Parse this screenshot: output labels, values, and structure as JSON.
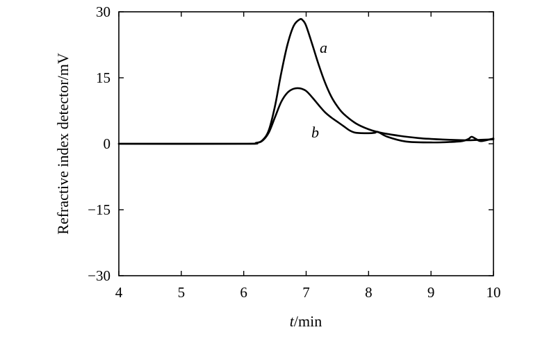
{
  "chart_data": {
    "type": "line",
    "xlabel": "t/min",
    "xlabel_var": "t",
    "xlabel_unit": "/min",
    "ylabel": "Refractive index detector/mV",
    "xlim": [
      4,
      10
    ],
    "ylim": [
      -30,
      30
    ],
    "xticks": [
      4,
      5,
      6,
      7,
      8,
      9,
      10
    ],
    "yticks": [
      30,
      15,
      0,
      -15,
      -30
    ],
    "xtick_labels": [
      "4",
      "5",
      "6",
      "7",
      "8",
      "9",
      "10"
    ],
    "ytick_labels": [
      "30",
      "15",
      "0",
      "−15",
      "−30"
    ],
    "grid": false,
    "series": [
      {
        "name": "a",
        "x": [
          4.0,
          6.0,
          6.2,
          6.3,
          6.4,
          6.5,
          6.6,
          6.7,
          6.8,
          6.9,
          6.95,
          7.0,
          7.1,
          7.2,
          7.3,
          7.4,
          7.5,
          7.6,
          7.8,
          8.0,
          8.2,
          8.5,
          8.8,
          9.0,
          9.3,
          9.6,
          9.8,
          10.0
        ],
        "values": [
          0.0,
          0.0,
          0.2,
          0.8,
          3.0,
          8.5,
          16.0,
          22.5,
          26.8,
          28.3,
          28.0,
          26.8,
          22.5,
          18.0,
          14.0,
          10.8,
          8.5,
          6.8,
          4.6,
          3.3,
          2.5,
          1.8,
          1.3,
          1.1,
          0.9,
          0.8,
          0.9,
          1.0
        ]
      },
      {
        "name": "b",
        "x": [
          4.0,
          6.0,
          6.2,
          6.3,
          6.4,
          6.5,
          6.6,
          6.7,
          6.8,
          6.9,
          7.0,
          7.1,
          7.2,
          7.3,
          7.4,
          7.5,
          7.6,
          7.7,
          7.8,
          8.0,
          8.1,
          8.15,
          8.3,
          8.6,
          9.0,
          9.3,
          9.5,
          9.6,
          9.65,
          9.72,
          9.8,
          10.0
        ],
        "values": [
          0.0,
          0.0,
          0.2,
          0.7,
          2.5,
          6.0,
          9.5,
          11.6,
          12.5,
          12.6,
          12.0,
          10.5,
          8.8,
          7.2,
          6.0,
          5.0,
          4.0,
          3.0,
          2.5,
          2.4,
          2.5,
          2.7,
          1.6,
          0.5,
          0.3,
          0.4,
          0.6,
          1.1,
          1.6,
          1.1,
          0.6,
          1.2
        ]
      }
    ],
    "annotations": [
      {
        "text": "a",
        "series": "a"
      },
      {
        "text": "b",
        "series": "b"
      }
    ]
  }
}
